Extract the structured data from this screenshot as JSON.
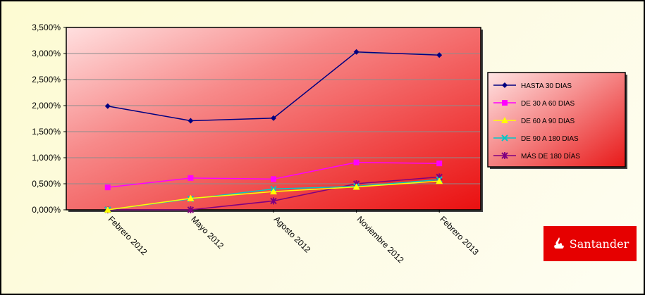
{
  "chart_data": {
    "type": "line",
    "categories": [
      "Febrero 2012",
      "Mayo 2012",
      "Agosto 2012",
      "Noviembre 2012",
      "Febrero 2013"
    ],
    "ylim": [
      0,
      3.5
    ],
    "ytick_labels": [
      "0,000%",
      "0,500%",
      "1,000%",
      "1,500%",
      "2,000%",
      "2,500%",
      "3,000%",
      "3,500%"
    ],
    "grid": true,
    "legend_position": "right",
    "series": [
      {
        "name": "HASTA 30 DIAS",
        "values": [
          1.99,
          1.71,
          1.76,
          3.03,
          2.97
        ],
        "color": "#000080",
        "marker": "diamond"
      },
      {
        "name": "DE 30 A 60 DIAS",
        "values": [
          0.43,
          0.61,
          0.59,
          0.91,
          0.89
        ],
        "color": "#ff00ff",
        "marker": "square"
      },
      {
        "name": "DE 60 A 90 DIAS",
        "values": [
          0.0,
          0.22,
          0.35,
          0.44,
          0.55
        ],
        "color": "#ffff00",
        "marker": "triangle"
      },
      {
        "name": "DE 90 A 180 DIAS",
        "values": [
          0.0,
          0.21,
          0.4,
          0.45,
          0.58
        ],
        "color": "#00c8c8",
        "marker": "x"
      },
      {
        "name": "MÁS DE 180 DÍAS",
        "values": [
          0.0,
          0.0,
          0.17,
          0.5,
          0.63
        ],
        "color": "#800080",
        "marker": "star"
      }
    ]
  },
  "brand": {
    "name": "Santander",
    "color": "#e60000"
  }
}
